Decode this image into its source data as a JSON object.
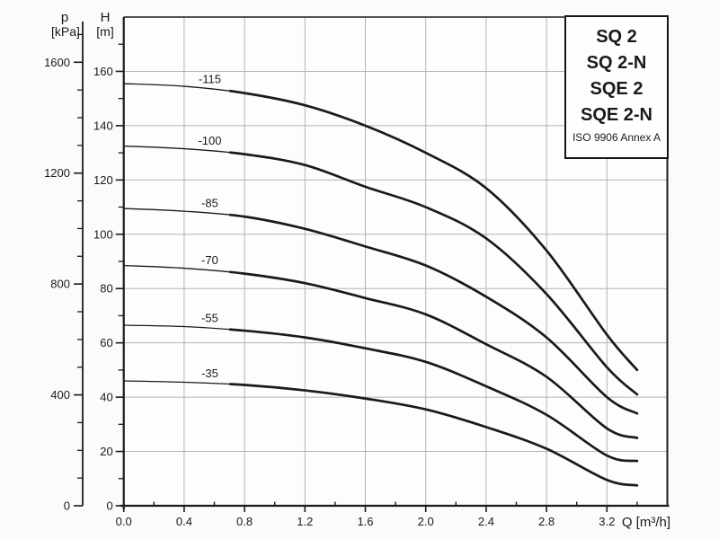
{
  "legend": {
    "items": [
      "SQ 2",
      "SQ 2-N",
      "SQE 2",
      "SQE 2-N"
    ],
    "note": "ISO 9906 Annex A"
  },
  "chart_data": {
    "type": "line",
    "title": "",
    "xlabel": "Q [m³/h]",
    "ylabel_primary": {
      "symbol": "H",
      "unit": "[m]"
    },
    "ylabel_secondary": {
      "symbol": "p",
      "unit": "[kPa]"
    },
    "x_axis": {
      "min": 0,
      "max": 3.6,
      "major_step": 0.4,
      "minor_step": 0.2,
      "label_max": 3.2,
      "minor_max": 3.4,
      "decimals": 1
    },
    "y_axis": {
      "min": 0,
      "max": 180,
      "major_step": 20,
      "minor_step": 10,
      "label_max": 160,
      "minor_max": 170
    },
    "p_axis": {
      "min": 0,
      "max": 1763,
      "major_step": 400,
      "minor_step": 100,
      "label_max": 1600,
      "minor_max": 1700
    },
    "grid": true,
    "x": [
      0,
      0.4,
      0.8,
      1.2,
      1.6,
      2.0,
      2.4,
      2.8,
      3.2,
      3.4
    ],
    "series": [
      {
        "name": "-115",
        "values": [
          155.5,
          154.5,
          152.0,
          147.5,
          140.0,
          130.0,
          117.0,
          94.0,
          63.0,
          50.0
        ]
      },
      {
        "name": "-100",
        "values": [
          132.5,
          131.5,
          129.5,
          125.5,
          117.5,
          110.0,
          98.5,
          78.0,
          51.0,
          41.0
        ]
      },
      {
        "name": "-85",
        "values": [
          109.5,
          108.5,
          106.5,
          102.0,
          95.5,
          88.5,
          77.0,
          62.0,
          40.0,
          34.0
        ]
      },
      {
        "name": "-70",
        "values": [
          88.5,
          87.5,
          85.5,
          82.0,
          76.5,
          70.5,
          59.5,
          47.5,
          28.5,
          25.0
        ]
      },
      {
        "name": "-55",
        "values": [
          66.5,
          66.0,
          64.5,
          62.0,
          58.0,
          53.0,
          44.0,
          33.5,
          18.5,
          16.5
        ]
      },
      {
        "name": "-35",
        "values": [
          46.0,
          45.5,
          44.5,
          42.5,
          39.5,
          35.5,
          29.0,
          21.0,
          9.5,
          7.5
        ]
      }
    ],
    "styles": {
      "curve_color": "#1a1a1a",
      "axis_color": "#1a1a1a",
      "grid_color": "#b3b3b3",
      "plot_background": "#fdfdfc",
      "thin_width": 1.3,
      "thick_width": 2.7,
      "thin_until_q": 0.7,
      "label_q": 0.57
    }
  }
}
